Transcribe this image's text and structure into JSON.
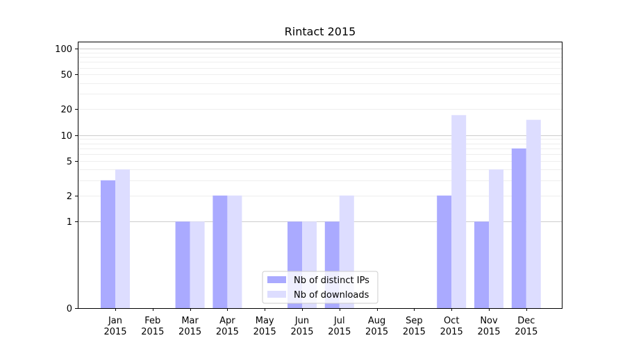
{
  "chart_data": {
    "type": "bar",
    "title": "Rintact 2015",
    "xlabel": "",
    "ylabel": "",
    "y_scale": "symlog",
    "ylim": [
      0,
      120
    ],
    "yticks": [
      0,
      1,
      2,
      5,
      10,
      20,
      50,
      100
    ],
    "major_grid_values": [
      1,
      10,
      100
    ],
    "categories": [
      {
        "month": "Jan",
        "year": "2015"
      },
      {
        "month": "Feb",
        "year": "2015"
      },
      {
        "month": "Mar",
        "year": "2015"
      },
      {
        "month": "Apr",
        "year": "2015"
      },
      {
        "month": "May",
        "year": "2015"
      },
      {
        "month": "Jun",
        "year": "2015"
      },
      {
        "month": "Jul",
        "year": "2015"
      },
      {
        "month": "Aug",
        "year": "2015"
      },
      {
        "month": "Sep",
        "year": "2015"
      },
      {
        "month": "Oct",
        "year": "2015"
      },
      {
        "month": "Nov",
        "year": "2015"
      },
      {
        "month": "Dec",
        "year": "2015"
      }
    ],
    "series": [
      {
        "name": "Nb of distinct IPs",
        "color": "#aaaaff",
        "values": [
          3,
          0,
          1,
          2,
          0,
          1,
          1,
          0,
          0,
          2,
          1,
          7
        ]
      },
      {
        "name": "Nb of downloads",
        "color": "#ddddff",
        "values": [
          4,
          0,
          1,
          2,
          0,
          1,
          2,
          0,
          0,
          17,
          4,
          15
        ]
      }
    ],
    "grid": true,
    "legend_position": "bottom-center"
  }
}
